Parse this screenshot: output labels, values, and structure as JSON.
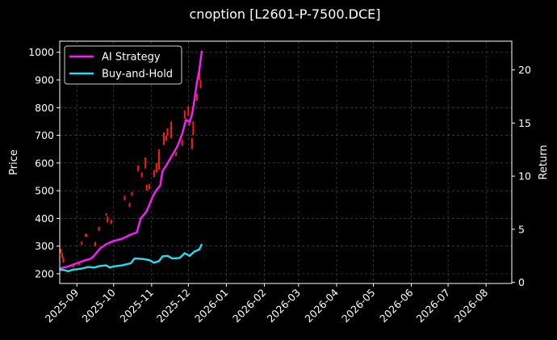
{
  "chart_data": {
    "type": "line",
    "title": "cnoption [L2601-P-7500.DCE]",
    "xlabel": "",
    "ylabel_left": "Price",
    "ylabel_right": "Return",
    "x_ticks": [
      "2025-09",
      "2025-10",
      "2025-11",
      "2025-12",
      "2026-01",
      "2026-02",
      "2026-03",
      "2026-04",
      "2026-05",
      "2026-06",
      "2026-07",
      "2026-08"
    ],
    "xlim": [
      "2025-08-18",
      "2026-08-22"
    ],
    "y_left_ticks": [
      200,
      300,
      400,
      500,
      600,
      700,
      800,
      900,
      1000
    ],
    "ylim_left": [
      165,
      1040
    ],
    "y_right_ticks": [
      0,
      5,
      10,
      15,
      20
    ],
    "ylim_right": [
      -0.1,
      22.7
    ],
    "grid": true,
    "legend_position": "top-left",
    "colors": {
      "up": "#00b800",
      "down": "#ff1a1a",
      "strategy": "#ff1aff",
      "buyhold": "#22e0f0"
    },
    "series": [
      {
        "name": "AI Strategy",
        "axis": "right",
        "points": [
          [
            "2025-08-18",
            1.3
          ],
          [
            "2025-08-25",
            1.5
          ],
          [
            "2025-09-01",
            1.8
          ],
          [
            "2025-09-08",
            2.1
          ],
          [
            "2025-09-12",
            2.2
          ],
          [
            "2025-09-15",
            2.5
          ],
          [
            "2025-09-20",
            3.2
          ],
          [
            "2025-09-25",
            3.6
          ],
          [
            "2025-10-01",
            3.9
          ],
          [
            "2025-10-08",
            4.1
          ],
          [
            "2025-10-15",
            4.5
          ],
          [
            "2025-10-20",
            4.7
          ],
          [
            "2025-10-23",
            6.0
          ],
          [
            "2025-10-28",
            6.7
          ],
          [
            "2025-11-02",
            8.1
          ],
          [
            "2025-11-05",
            8.7
          ],
          [
            "2025-11-08",
            9.1
          ],
          [
            "2025-11-10",
            10.5
          ],
          [
            "2025-11-13",
            11.0
          ],
          [
            "2025-11-18",
            12.0
          ],
          [
            "2025-11-22",
            12.8
          ],
          [
            "2025-11-26",
            14.0
          ],
          [
            "2025-11-29",
            15.3
          ],
          [
            "2025-12-02",
            15.1
          ],
          [
            "2025-12-04",
            15.8
          ],
          [
            "2025-12-06",
            17.2
          ],
          [
            "2025-12-08",
            18.8
          ],
          [
            "2025-12-10",
            20.0
          ],
          [
            "2025-12-12",
            21.8
          ]
        ]
      },
      {
        "name": "Buy-and-Hold",
        "axis": "right",
        "points": [
          [
            "2025-08-18",
            1.2
          ],
          [
            "2025-08-22",
            1.15
          ],
          [
            "2025-08-25",
            1.05
          ],
          [
            "2025-08-29",
            1.2
          ],
          [
            "2025-09-05",
            1.3
          ],
          [
            "2025-09-10",
            1.45
          ],
          [
            "2025-09-15",
            1.4
          ],
          [
            "2025-09-20",
            1.55
          ],
          [
            "2025-09-25",
            1.6
          ],
          [
            "2025-09-28",
            1.4
          ],
          [
            "2025-10-01",
            1.5
          ],
          [
            "2025-10-08",
            1.6
          ],
          [
            "2025-10-15",
            1.8
          ],
          [
            "2025-10-18",
            2.25
          ],
          [
            "2025-10-25",
            2.2
          ],
          [
            "2025-10-30",
            2.1
          ],
          [
            "2025-11-03",
            1.85
          ],
          [
            "2025-11-07",
            2.0
          ],
          [
            "2025-11-10",
            2.45
          ],
          [
            "2025-11-14",
            2.5
          ],
          [
            "2025-11-18",
            2.25
          ],
          [
            "2025-11-24",
            2.3
          ],
          [
            "2025-11-28",
            2.75
          ],
          [
            "2025-12-02",
            2.5
          ],
          [
            "2025-12-06",
            2.9
          ],
          [
            "2025-12-10",
            3.1
          ],
          [
            "2025-12-12",
            3.6
          ]
        ]
      }
    ],
    "candles": [
      [
        "2025-08-19",
        290,
        275
      ],
      [
        "2025-08-20",
        275,
        258
      ],
      [
        "2025-08-21",
        260,
        240
      ],
      [
        "2025-08-29",
        232,
        222
      ],
      [
        "2025-09-03",
        242,
        230
      ],
      [
        "2025-09-05",
        316,
        304
      ],
      [
        "2025-09-08",
        344,
        334
      ],
      [
        "2025-09-09",
        344,
        334
      ],
      [
        "2025-09-16",
        315,
        300
      ],
      [
        "2025-09-19",
        370,
        355
      ],
      [
        "2025-09-25",
        419,
        410
      ],
      [
        "2025-09-26",
        407,
        385
      ],
      [
        "2025-09-29",
        395,
        380
      ],
      [
        "2025-10-10",
        482,
        465
      ],
      [
        "2025-10-14",
        456,
        440
      ],
      [
        "2025-10-16",
        495,
        482
      ],
      [
        "2025-10-21",
        591,
        570
      ],
      [
        "2025-10-24",
        566,
        548
      ],
      [
        "2025-10-27",
        620,
        580
      ],
      [
        "2025-10-28",
        522,
        500
      ],
      [
        "2025-10-30",
        525,
        505
      ],
      [
        "2025-11-03",
        575,
        550
      ],
      [
        "2025-11-05",
        600,
        565
      ],
      [
        "2025-11-07",
        650,
        575
      ],
      [
        "2025-11-11",
        710,
        665
      ],
      [
        "2025-11-13",
        700,
        680
      ],
      [
        "2025-11-14",
        725,
        700
      ],
      [
        "2025-11-17",
        750,
        690
      ],
      [
        "2025-11-21",
        640,
        625
      ],
      [
        "2025-11-26",
        685,
        662
      ],
      [
        "2025-11-28",
        790,
        760
      ],
      [
        "2025-12-01",
        805,
        770
      ],
      [
        "2025-12-02",
        745,
        735
      ],
      [
        "2025-12-04",
        690,
        650
      ],
      [
        "2025-12-05",
        750,
        700
      ],
      [
        "2025-12-08",
        850,
        825
      ],
      [
        "2025-12-10",
        950,
        900
      ],
      [
        "2025-12-11",
        900,
        870
      ]
    ]
  }
}
